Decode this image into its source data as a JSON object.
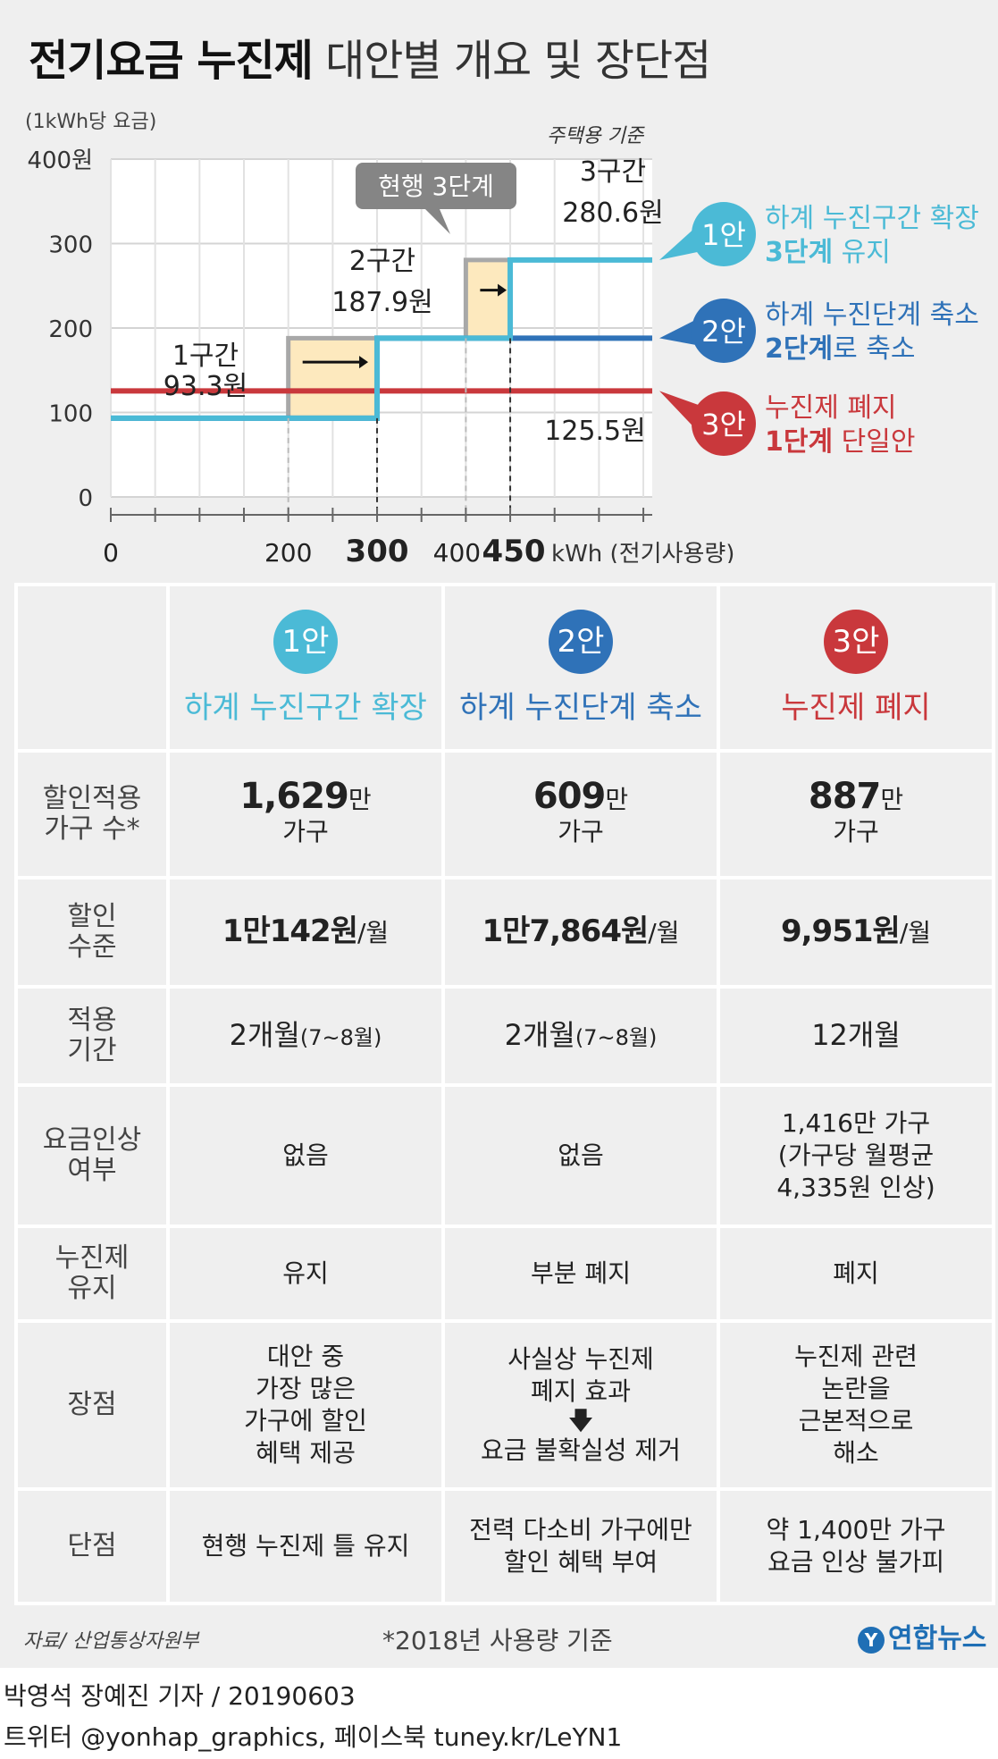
{
  "title": {
    "bold": "전기요금 누진제",
    "rest": "대안별 개요 및 장단점"
  },
  "chart_data": {
    "type": "line",
    "ylabel": "(1kWh당 요금)",
    "basis": "주택용 기준",
    "xlabel": "kWh (전기사용량)",
    "xlim": [
      0,
      610
    ],
    "ylim": [
      0,
      400
    ],
    "x_ticks": [
      "0",
      "200",
      "300",
      "400",
      "450"
    ],
    "y_ticks": [
      "0",
      "100",
      "200",
      "300",
      "400원"
    ],
    "current_label": "현행 3단계",
    "segment_labels": [
      {
        "name": "1구간",
        "price": "93.3원"
      },
      {
        "name": "2구간",
        "price": "187.9원"
      },
      {
        "name": "3구간",
        "price": "280.6원"
      },
      {
        "name": "",
        "price": "125.5원"
      }
    ],
    "series": [
      {
        "name": "1안",
        "color": "#4bbad6",
        "points": [
          [
            0,
            93.3
          ],
          [
            300,
            93.3
          ],
          [
            300,
            187.9
          ],
          [
            450,
            187.9
          ],
          [
            450,
            280.6
          ],
          [
            610,
            280.6
          ]
        ]
      },
      {
        "name": "2안",
        "color": "#2f72b8",
        "points": [
          [
            0,
            93.3
          ],
          [
            300,
            93.3
          ],
          [
            300,
            187.9
          ],
          [
            610,
            187.9
          ]
        ]
      },
      {
        "name": "3안",
        "color": "#c9383c",
        "points": [
          [
            0,
            125.5
          ],
          [
            610,
            125.5
          ]
        ]
      },
      {
        "name": "현행",
        "color": "#a8a8a8",
        "points": [
          [
            0,
            93.3
          ],
          [
            200,
            93.3
          ],
          [
            200,
            187.9
          ],
          [
            400,
            187.9
          ],
          [
            400,
            280.6
          ],
          [
            610,
            280.6
          ]
        ]
      }
    ],
    "shift_boxes": [
      {
        "x0": 200,
        "x1": 300,
        "y0": 93.3,
        "y1": 187.9
      },
      {
        "x0": 400,
        "x1": 450,
        "y0": 187.9,
        "y1": 280.6
      }
    ]
  },
  "legend": [
    {
      "badge": "1안",
      "line1": "하계 누진구간 확장",
      "line2_bold": "3단계",
      "line2_rest": " 유지",
      "color": "#4bbad6"
    },
    {
      "badge": "2안",
      "line1": "하계 누진단계 축소",
      "line2_bold": "2단계",
      "line2_rest": "로 축소",
      "color": "#2f72b8"
    },
    {
      "badge": "3안",
      "line1": "누진제 폐지",
      "line2_bold": "1단계",
      "line2_rest": " 단일안",
      "color": "#c9383c"
    }
  ],
  "table": {
    "plans": [
      {
        "badge": "1안",
        "title": "하계 누진구간 확장",
        "color": "#4bbad6"
      },
      {
        "badge": "2안",
        "title": "하계 누진단계 축소",
        "color": "#2f72b8"
      },
      {
        "badge": "3안",
        "title": "누진제 폐지",
        "color": "#c9383c"
      }
    ],
    "rows": {
      "households": {
        "label1": "할인적용",
        "label2": "가구 수*",
        "values": [
          "1,629",
          "609",
          "887"
        ],
        "unit": "만",
        "unit2": "가구"
      },
      "discount": {
        "label1": "할인",
        "label2": "수준",
        "values": [
          "1만142원",
          "1만7,864원",
          "9,951원"
        ],
        "unit": "/월"
      },
      "period": {
        "label1": "적용",
        "label2": "기간",
        "c1_main": "2개월",
        "c1_sub": "(7~8월)",
        "c2_main": "2개월",
        "c2_sub": "(7~8월)",
        "c3": "12개월"
      },
      "increase": {
        "label1": "요금인상",
        "label2": "여부",
        "c1": "없음",
        "c2": "없음",
        "c3_l1": "1,416만 가구",
        "c3_l2": "(가구당 월평균",
        "c3_l3": "4,335원 인상)"
      },
      "progressive": {
        "label1": "누진제",
        "label2": "유지",
        "values": [
          "유지",
          "부분 폐지",
          "폐지"
        ]
      },
      "pros": {
        "label": "장점",
        "c1": [
          "대안 중",
          "가장 많은",
          "가구에 할인",
          "혜택 제공"
        ],
        "c2": [
          "사실상 누진제",
          "폐지 효과",
          "요금 불확실성 제거"
        ],
        "c3": [
          "누진제 관련",
          "논란을",
          "근본적으로",
          "해소"
        ]
      },
      "cons": {
        "label": "단점",
        "c1": [
          "현행 누진제 틀 유지"
        ],
        "c2": [
          "전력 다소비 가구에만",
          "할인 혜택 부여"
        ],
        "c3": [
          "약 1,400만 가구",
          "요금 인상 불가피"
        ]
      }
    }
  },
  "footer": {
    "source": "자료/ 산업통상자원부",
    "note": "*2018년 사용량 기준",
    "logo": "연합뉴스",
    "credit1": "박영석 장예진 기자 /  20190603",
    "credit2": "트위터 @yonhap_graphics, 페이스북 tuney.kr/LeYN1"
  }
}
